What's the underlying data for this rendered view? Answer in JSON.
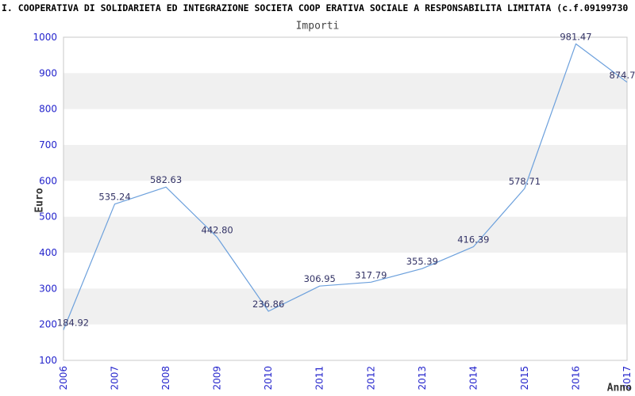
{
  "page": {
    "title": "I. COOPERATIVA DI SOLIDARIETA ED INTEGRAZIONE SOCIETA COOP ERATIVA SOCIALE A RESPONSABILITA LIMITATA (c.f.09199730"
  },
  "chart_data": {
    "type": "line",
    "title": "Importi",
    "xlabel": "Anno",
    "ylabel": "Euro",
    "x": [
      2006,
      2007,
      2008,
      2009,
      2010,
      2011,
      2012,
      2013,
      2014,
      2015,
      2016,
      2017
    ],
    "values": [
      184.92,
      535.24,
      582.63,
      442.8,
      236.86,
      306.95,
      317.79,
      355.39,
      416.39,
      578.71,
      981.47,
      874.7
    ],
    "value_labels": [
      "184.92",
      "535.24",
      "582.63",
      "442.80",
      "236.86",
      "306.95",
      "317.79",
      "355.39",
      "416.39",
      "578.71",
      "981.47",
      "874.7"
    ],
    "ylim": [
      100,
      1000
    ],
    "ytick_step": 100,
    "grid": "alternating-horizontal-bands",
    "legend": "none",
    "colors": {
      "line": "#6ca0dc",
      "tick_labels": "#2424cc",
      "value_labels": "#333366",
      "band": "#f0f0f0",
      "plot_border": "#c8c8c8",
      "background": "#ffffff"
    }
  }
}
